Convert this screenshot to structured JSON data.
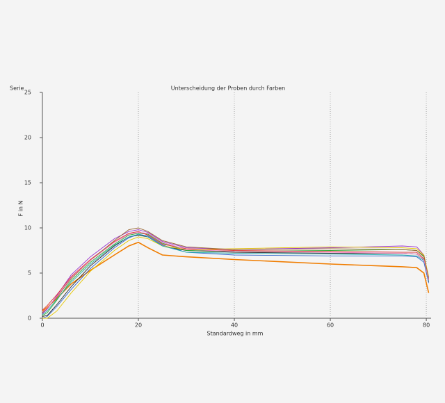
{
  "chart_data": {
    "type": "line",
    "corner_label": "Serie",
    "title": "Unterscheidung der Proben durch Farben",
    "xlabel": "Standardweg in mm",
    "ylabel": "F in N",
    "x": [
      0,
      1,
      3,
      6,
      10,
      15,
      18,
      20,
      22,
      25,
      30,
      40,
      60,
      75,
      78,
      79.5,
      80.5
    ],
    "xlim": [
      0,
      81
    ],
    "xticks": [
      0,
      20,
      40,
      60,
      80
    ],
    "ylim": [
      0,
      25
    ],
    "yticks": [
      0,
      5,
      10,
      15,
      20,
      25
    ],
    "grid": "x",
    "series": [
      {
        "color": "#f07d00",
        "values": [
          0.8,
          1.2,
          2.2,
          3.8,
          5.3,
          7,
          8,
          8.4,
          7.8,
          7,
          6.8,
          6.5,
          6,
          5.7,
          5.6,
          5,
          2.8
        ]
      },
      {
        "color": "#222222",
        "values": [
          0.2,
          0.3,
          1.5,
          3.5,
          5.8,
          8,
          9,
          9.2,
          9,
          8,
          7.5,
          7.3,
          7.2,
          7.2,
          7.1,
          6.5,
          4
        ]
      },
      {
        "color": "#9933cc",
        "values": [
          0.5,
          1,
          2.5,
          4.8,
          6.8,
          8.8,
          9.6,
          9.8,
          9.5,
          8.5,
          7.8,
          7.6,
          7.8,
          8,
          7.9,
          7,
          4.5
        ]
      },
      {
        "color": "#33aa33",
        "values": [
          0.3,
          0.6,
          2,
          4.2,
          6.2,
          8.2,
          9.2,
          9.4,
          9.3,
          8.3,
          7.5,
          7.4,
          7.5,
          7.6,
          7.5,
          6.8,
          4.2
        ]
      },
      {
        "color": "#dd3333",
        "values": [
          0.9,
          1.4,
          2.6,
          4.6,
          6.5,
          8.5,
          9.4,
          9.6,
          9.2,
          8.2,
          7.7,
          7.5,
          7.4,
          7.3,
          7.3,
          6.6,
          4.3
        ]
      },
      {
        "color": "#3366cc",
        "values": [
          0,
          0.2,
          1.3,
          3.2,
          5.5,
          7.8,
          8.9,
          9.3,
          9.1,
          8.1,
          7.3,
          7,
          6.9,
          6.9,
          6.8,
          6.2,
          3.9
        ]
      },
      {
        "color": "#e6c700",
        "values": [
          0,
          0,
          0.8,
          2.8,
          5.2,
          7.5,
          8.6,
          9,
          8.8,
          8,
          7.6,
          7.7,
          7.9,
          7.8,
          7.7,
          7,
          4.6
        ]
      },
      {
        "color": "#996633",
        "values": [
          0.6,
          1.1,
          2.3,
          4.4,
          6.4,
          8.6,
          9.8,
          10,
          9.6,
          8.6,
          7.9,
          7.6,
          7.7,
          7.6,
          7.5,
          6.9,
          4.4
        ]
      },
      {
        "color": "#22aaaa",
        "values": [
          0.4,
          0.8,
          2.1,
          4,
          6,
          8.1,
          9,
          9.3,
          9,
          8,
          7.3,
          7.2,
          7.1,
          7,
          6.9,
          6.4,
          4.1
        ]
      },
      {
        "color": "#ee77bb",
        "values": [
          0.7,
          1.1,
          2.4,
          4.5,
          6.4,
          8.4,
          9.3,
          9.5,
          9.4,
          8.4,
          7.6,
          7.4,
          7.3,
          7.2,
          7.1,
          6.5,
          4.2
        ]
      }
    ]
  }
}
